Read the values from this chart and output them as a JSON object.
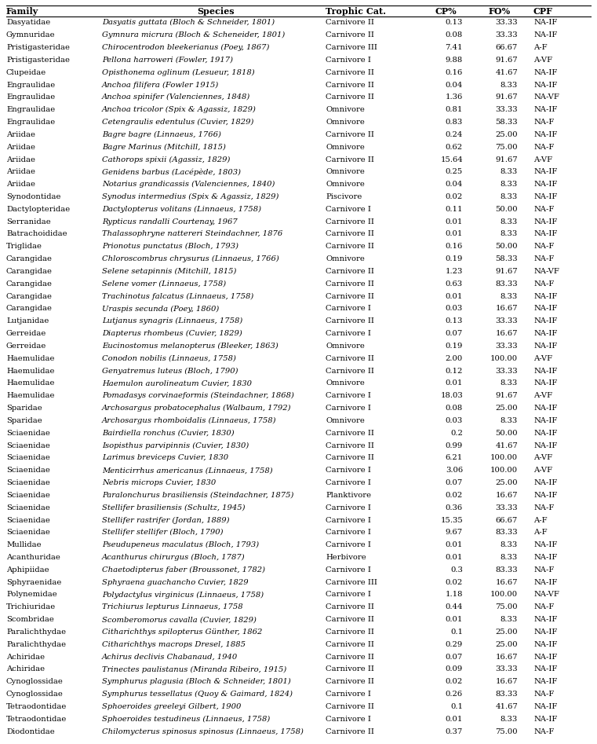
{
  "columns": [
    "Family",
    "Species",
    "Trophic Cat.",
    "CP%",
    "FO%",
    "CPF"
  ],
  "rows": [
    [
      "Dasyatidae",
      "Dasyatis guttata (Bloch & Schneider, 1801)",
      "Carnivore II",
      "0.13",
      "33.33",
      "NA-IF"
    ],
    [
      "Gymnuridae",
      "Gymnura micrura (Bloch & Scheneider, 1801)",
      "Carnivore II",
      "0.08",
      "33.33",
      "NA-IF"
    ],
    [
      "Pristigasteridae",
      "Chirocentrodon bleekerianus (Poey, 1867)",
      "Carnivore III",
      "7.41",
      "66.67",
      "A-F"
    ],
    [
      "Pristigasteridae",
      "Pellona harroweri (Fowler, 1917)",
      "Carnivore I",
      "9.88",
      "91.67",
      "A-VF"
    ],
    [
      "Clupeidae",
      "Opisthonema oglinum (Lesueur, 1818)",
      "Carnivore II",
      "0.16",
      "41.67",
      "NA-IF"
    ],
    [
      "Engraulidae",
      "Anchoa filifera (Fowler 1915)",
      "Carnivore II",
      "0.04",
      "8.33",
      "NA-IF"
    ],
    [
      "Engraulidae",
      "Anchoa spinifer (Valenciennes, 1848)",
      "Carnivore II",
      "1.36",
      "91.67",
      "NA-VF"
    ],
    [
      "Engraulidae",
      "Anchoa tricolor (Spix & Agassiz, 1829)",
      "Omnivore",
      "0.81",
      "33.33",
      "NA-IF"
    ],
    [
      "Engraulidae",
      "Cetengraulis edentulus (Cuvier, 1829)",
      "Omnivore",
      "0.83",
      "58.33",
      "NA-F"
    ],
    [
      "Ariidae",
      "Bagre bagre (Linnaeus, 1766)",
      "Carnivore II",
      "0.24",
      "25.00",
      "NA-IF"
    ],
    [
      "Ariidae",
      "Bagre Marinus (Mitchill, 1815)",
      "Omnivore",
      "0.62",
      "75.00",
      "NA-F"
    ],
    [
      "Ariidae",
      "Cathorops spixii (Agassiz, 1829)",
      "Carnivore II",
      "15.64",
      "91.67",
      "A-VF"
    ],
    [
      "Ariidae",
      "Genidens barbus (Lacépède, 1803)",
      "Omnivore",
      "0.25",
      "8.33",
      "NA-IF"
    ],
    [
      "Ariidae",
      "Notarius grandicassis (Valenciennes, 1840)",
      "Omnivore",
      "0.04",
      "8.33",
      "NA-IF"
    ],
    [
      "Synodontidae",
      "Synodus intermedius (Spix & Agassiz, 1829)",
      "Piscivore",
      "0.02",
      "8.33",
      "NA-IF"
    ],
    [
      "Dactylopteridae",
      "Dactylopterus volitans (Linnaeus, 1758)",
      "Carnivore I",
      "0.11",
      "50.00",
      "NA-F"
    ],
    [
      "Serranidae",
      "Rypticus randalli Courtenay, 1967",
      "Carnivore II",
      "0.01",
      "8.33",
      "NA-IF"
    ],
    [
      "Batrachoididae",
      "Thalassophryne nattereri Steindachner, 1876",
      "Carnivore II",
      "0.01",
      "8.33",
      "NA-IF"
    ],
    [
      "Triglidae",
      "Prionotus punctatus (Bloch, 1793)",
      "Carnivore II",
      "0.16",
      "50.00",
      "NA-F"
    ],
    [
      "Carangidae",
      "Chloroscombrus chrysurus (Linnaeus, 1766)",
      "Omnivore",
      "0.19",
      "58.33",
      "NA-F"
    ],
    [
      "Carangidae",
      "Selene setapinnis (Mitchill, 1815)",
      "Carnivore II",
      "1.23",
      "91.67",
      "NA-VF"
    ],
    [
      "Carangidae",
      "Selene vomer (Linnaeus, 1758)",
      "Carnivore II",
      "0.63",
      "83.33",
      "NA-F"
    ],
    [
      "Carangidae",
      "Trachinotus falcatus (Linnaeus, 1758)",
      "Carnivore II",
      "0.01",
      "8.33",
      "NA-IF"
    ],
    [
      "Carangidae",
      "Uraspis secunda (Poey, 1860)",
      "Carnivore I",
      "0.03",
      "16.67",
      "NA-IF"
    ],
    [
      "Lutjanidae",
      "Lutjanus synagris (Linnaeus, 1758)",
      "Carnivore II",
      "0.13",
      "33.33",
      "NA-IF"
    ],
    [
      "Gerreidae",
      "Diapterus rhombeus (Cuvier, 1829)",
      "Carnivore I",
      "0.07",
      "16.67",
      "NA-IF"
    ],
    [
      "Gerreidae",
      "Eucinostomus melanopterus (Bleeker, 1863)",
      "Omnivore",
      "0.19",
      "33.33",
      "NA-IF"
    ],
    [
      "Haemulidae",
      "Conodon nobilis (Linnaeus, 1758)",
      "Carnivore II",
      "2.00",
      "100.00",
      "A-VF"
    ],
    [
      "Haemulidae",
      "Genyatremus luteus (Bloch, 1790)",
      "Carnivore II",
      "0.12",
      "33.33",
      "NA-IF"
    ],
    [
      "Haemulidae",
      "Haemulon aurolineatum Cuvier, 1830",
      "Omnivore",
      "0.01",
      "8.33",
      "NA-IF"
    ],
    [
      "Haemulidae",
      "Pomadasys corvinaeformis (Steindachner, 1868)",
      "Carnivore I",
      "18.03",
      "91.67",
      "A-VF"
    ],
    [
      "Sparidae",
      "Archosargus probatocephalus (Walbaum, 1792)",
      "Carnivore I",
      "0.08",
      "25.00",
      "NA-IF"
    ],
    [
      "Sparidae",
      "Archosargus rhomboidalis (Linnaeus, 1758)",
      "Omnivore",
      "0.03",
      "8.33",
      "NA-IF"
    ],
    [
      "Sciaenidae",
      "Bairdiella ronchus (Cuvier, 1830)",
      "Carnivore II",
      "0.2",
      "50.00",
      "NA-IF"
    ],
    [
      "Sciaenidae",
      "Isopisthus parvipinnis (Cuvier, 1830)",
      "Carnivore II",
      "0.99",
      "41.67",
      "NA-IF"
    ],
    [
      "Sciaenidae",
      "Larimus breviceps Cuvier, 1830",
      "Carnivore II",
      "6.21",
      "100.00",
      "A-VF"
    ],
    [
      "Sciaenidae",
      "Menticirrhus americanus (Linnaeus, 1758)",
      "Carnivore I",
      "3.06",
      "100.00",
      "A-VF"
    ],
    [
      "Sciaenidae",
      "Nebris microps Cuvier, 1830",
      "Carnivore I",
      "0.07",
      "25.00",
      "NA-IF"
    ],
    [
      "Sciaenidae",
      "Paralonchurus brasiliensis (Steindachner, 1875)",
      "Planktivore",
      "0.02",
      "16.67",
      "NA-IF"
    ],
    [
      "Sciaenidae",
      "Stellifer brasiliensis (Schultz, 1945)",
      "Carnivore I",
      "0.36",
      "33.33",
      "NA-F"
    ],
    [
      "Sciaenidae",
      "Stellifer rastrifer (Jordan, 1889)",
      "Carnivore I",
      "15.35",
      "66.67",
      "A-F"
    ],
    [
      "Sciaenidae",
      "Stellifer stellifer (Bloch, 1790)",
      "Carnivore I",
      "9.67",
      "83.33",
      "A-F"
    ],
    [
      "Mullidae",
      "Pseudupeneus maculatus (Bloch, 1793)",
      "Carnivore I",
      "0.01",
      "8.33",
      "NA-IF"
    ],
    [
      "Acanthuridae",
      "Acanthurus chirurgus (Bloch, 1787)",
      "Herbivore",
      "0.01",
      "8.33",
      "NA-IF"
    ],
    [
      "Aphipiidae",
      "Chaetodipterus faber (Broussonet, 1782)",
      "Carnivore I",
      "0.3",
      "83.33",
      "NA-F"
    ],
    [
      "Sphyraenidae",
      "Sphyraena guachancho Cuvier, 1829",
      "Carnivore III",
      "0.02",
      "16.67",
      "NA-IF"
    ],
    [
      "Polynemidae",
      "Polydactylus virginicus (Linnaeus, 1758)",
      "Carnivore I",
      "1.18",
      "100.00",
      "NA-VF"
    ],
    [
      "Trichiuridae",
      "Trichiurus lepturus Linnaeus, 1758",
      "Carnivore II",
      "0.44",
      "75.00",
      "NA-F"
    ],
    [
      "Scombridae",
      "Scomberomorus cavalla (Cuvier, 1829)",
      "Carnivore II",
      "0.01",
      "8.33",
      "NA-IF"
    ],
    [
      "Paralichthydae",
      "Citharichthys spilopterus Günther, 1862",
      "Carnivore II",
      "0.1",
      "25.00",
      "NA-IF"
    ],
    [
      "Paralichthydae",
      "Citharichthys macrops Dresel, 1885",
      "Carnivore II",
      "0.29",
      "25.00",
      "NA-IF"
    ],
    [
      "Achiridae",
      "Achirus declivis Chabanaud, 1940",
      "Carnivore II",
      "0.07",
      "16.67",
      "NA-IF"
    ],
    [
      "Achiridae",
      "Trinectes paulistanus (Miranda Ribeiro, 1915)",
      "Carnivore II",
      "0.09",
      "33.33",
      "NA-IF"
    ],
    [
      "Cynoglossidae",
      "Symphurus plagusia (Bloch & Schneider, 1801)",
      "Carnivore II",
      "0.02",
      "16.67",
      "NA-IF"
    ],
    [
      "Cynoglossidae",
      "Symphurus tessellatus (Quoy & Gaimard, 1824)",
      "Carnivore I",
      "0.26",
      "83.33",
      "NA-F"
    ],
    [
      "Tetraodontidae",
      "Sphoeroides greeleyi Gilbert, 1900",
      "Carnivore II",
      "0.1",
      "41.67",
      "NA-IF"
    ],
    [
      "Tetraodontidae",
      "Sphoeroides testudineus (Linnaeus, 1758)",
      "Carnivore I",
      "0.01",
      "8.33",
      "NA-IF"
    ],
    [
      "Diodontidae",
      "Chilomycterus spinosus spinosus (Linnaeus, 1758)",
      "Carnivore II",
      "0.37",
      "75.00",
      "NA-F"
    ]
  ],
  "bg_color": "#ffffff",
  "text_color": "#000000",
  "font_size": 7.2,
  "header_font_size": 8.0
}
